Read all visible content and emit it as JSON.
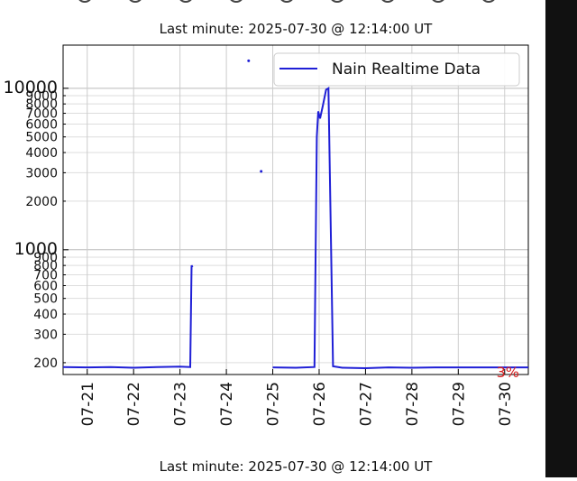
{
  "chart_data": {
    "type": "line",
    "title": "Last minute: 2025-07-30 @ 12:14:00  UT",
    "annotation": "3%",
    "log_scale": true,
    "grid": true,
    "legend": "upper right",
    "x": [
      20.48,
      21.0,
      21.5,
      22.0,
      22.5,
      23.0,
      23.22,
      23.25,
      23.27,
      23.3,
      24.48,
      24.52,
      24.75,
      24.8,
      25.0,
      25.5,
      25.9,
      25.95,
      25.98,
      26.02,
      26.08,
      26.15,
      26.2,
      26.3,
      26.5,
      27.0,
      27.5,
      28.0,
      28.5,
      29.0,
      29.5,
      30.0,
      30.51
    ],
    "series": [
      {
        "name": "Nain Realtime Data",
        "color": "#1f1fd6",
        "values": [
          188,
          187,
          188,
          186,
          188,
          189,
          188,
          800,
          780,
          null,
          14800,
          null,
          3060,
          null,
          187,
          186,
          188,
          5000,
          7200,
          6500,
          7800,
          9800,
          10000,
          190,
          186,
          185,
          187,
          186,
          187,
          187,
          187,
          187,
          187
        ]
      }
    ],
    "xlim": [
      20.48,
      30.51
    ],
    "xticks": [
      {
        "value": 21,
        "label": "07-21"
      },
      {
        "value": 22,
        "label": "07-22"
      },
      {
        "value": 23,
        "label": "07-23"
      },
      {
        "value": 24,
        "label": "07-24"
      },
      {
        "value": 25,
        "label": "07-25"
      },
      {
        "value": 26,
        "label": "07-26"
      },
      {
        "value": 27,
        "label": "07-27"
      },
      {
        "value": 28,
        "label": "07-28"
      },
      {
        "value": 29,
        "label": "07-29"
      },
      {
        "value": 30,
        "label": "07-30"
      }
    ],
    "ylim": [
      169,
      18500
    ],
    "yticks": [
      200,
      300,
      400,
      500,
      600,
      700,
      800,
      900,
      1000,
      2000,
      3000,
      4000,
      5000,
      6000,
      7000,
      8000,
      9000,
      10000
    ]
  }
}
